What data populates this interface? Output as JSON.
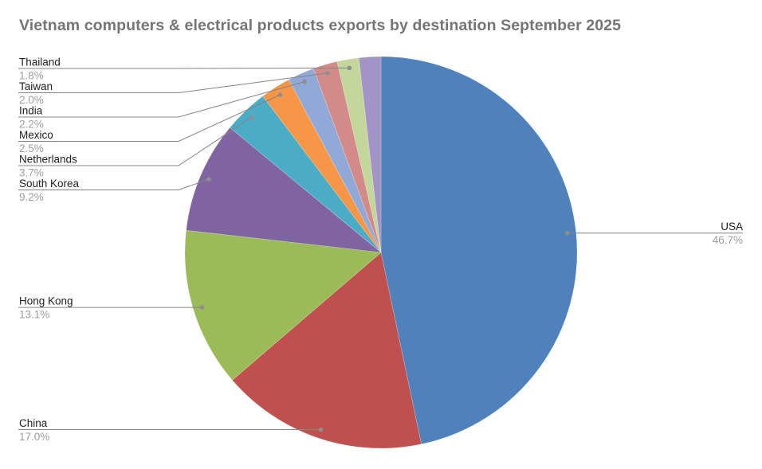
{
  "header": {
    "title": "Vietnam computers & electrical products exports by destination September 2025",
    "title_color": "#757575"
  },
  "chart_data": {
    "type": "pie",
    "title": "Vietnam computers & electrical products exports by destination September 2025",
    "unit": "%",
    "start_angle_deg": 0,
    "direction": "clockwise",
    "legend_position": "none",
    "label_style": "leader-lines-with-dots",
    "background": "#ffffff",
    "slices": [
      {
        "label": "USA",
        "value": 46.7,
        "pct_label": "46.7%",
        "color": "#4F81BD",
        "label_side": "right"
      },
      {
        "label": "China",
        "value": 17.0,
        "pct_label": "17.0%",
        "color": "#C0504D",
        "label_side": "left"
      },
      {
        "label": "Hong Kong",
        "value": 13.1,
        "pct_label": "13.1%",
        "color": "#9BBB59",
        "label_side": "left"
      },
      {
        "label": "South Korea",
        "value": 9.2,
        "pct_label": "9.2%",
        "color": "#8064A2",
        "label_side": "left-stacked"
      },
      {
        "label": "Netherlands",
        "value": 3.7,
        "pct_label": "3.7%",
        "color": "#4BACC6",
        "label_side": "left-stacked"
      },
      {
        "label": "Mexico",
        "value": 2.5,
        "pct_label": "2.5%",
        "color": "#F79646",
        "label_side": "left-stacked"
      },
      {
        "label": "India",
        "value": 2.2,
        "pct_label": "2.2%",
        "color": "#91A9D6",
        "label_side": "left-stacked"
      },
      {
        "label": "Taiwan",
        "value": 2.0,
        "pct_label": "2.0%",
        "color": "#D28B88",
        "label_side": "left-stacked"
      },
      {
        "label": "Thailand",
        "value": 1.8,
        "pct_label": "1.8%",
        "color": "#C3D69B",
        "label_side": "left-stacked"
      },
      {
        "label": "",
        "value": 1.8,
        "pct_label": "",
        "color": "#A294C4",
        "label_side": "none"
      }
    ],
    "style": {
      "label_text_color": "#212121",
      "percent_text_color": "#9e9e9e",
      "leader_line_color": "#848484",
      "leader_dot_color": "#8f8f8f",
      "slice_stroke_color": "#ffffff"
    }
  }
}
